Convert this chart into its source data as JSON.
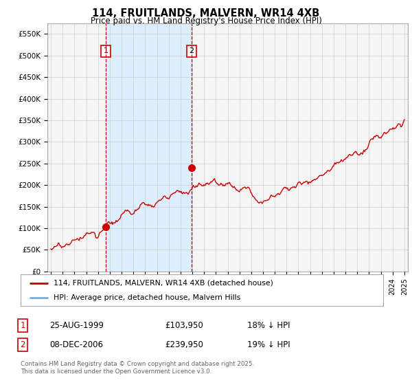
{
  "title": "114, FRUITLANDS, MALVERN, WR14 4XB",
  "subtitle": "Price paid vs. HM Land Registry's House Price Index (HPI)",
  "ylabel_ticks": [
    "£0",
    "£50K",
    "£100K",
    "£150K",
    "£200K",
    "£250K",
    "£300K",
    "£350K",
    "£400K",
    "£450K",
    "£500K",
    "£550K"
  ],
  "ytick_values": [
    0,
    50000,
    100000,
    150000,
    200000,
    250000,
    300000,
    350000,
    400000,
    450000,
    500000,
    550000
  ],
  "ylim": [
    0,
    575000
  ],
  "purchase1": {
    "date": "25-AUG-1999",
    "price": 103950,
    "label": "1",
    "year": 1999.65
  },
  "purchase2": {
    "date": "08-DEC-2006",
    "price": 239950,
    "label": "2",
    "year": 2006.93
  },
  "legend_line1": "114, FRUITLANDS, MALVERN, WR14 4XB (detached house)",
  "legend_line2": "HPI: Average price, detached house, Malvern Hills",
  "red_color": "#cc0000",
  "blue_color": "#7aaed4",
  "shade_color": "#ddeeff",
  "bg_color": "#f5f5f5",
  "grid_color": "#cccccc",
  "footnote": "Contains HM Land Registry data © Crown copyright and database right 2025.\nThis data is licensed under the Open Government Licence v3.0."
}
